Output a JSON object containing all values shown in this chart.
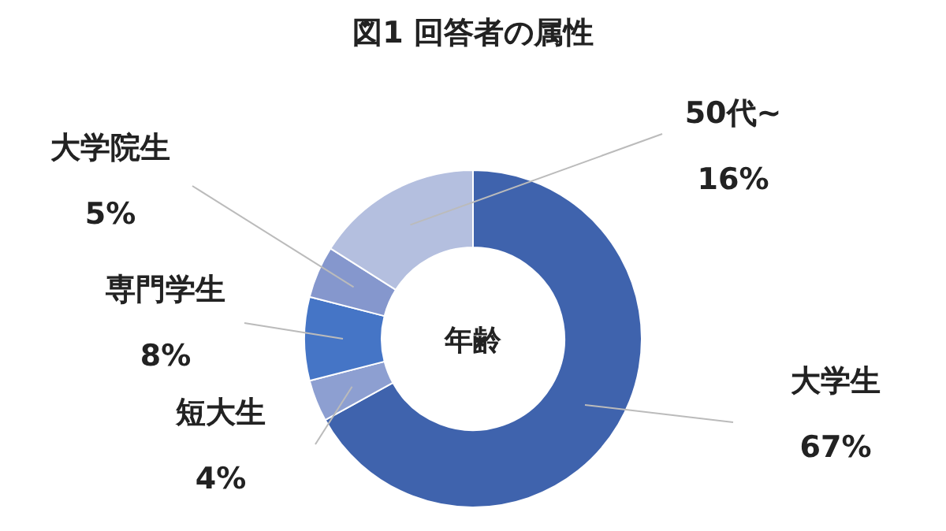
{
  "chart_data": {
    "type": "donut",
    "title": "図1 回答者の属性",
    "categories": [
      "大学生",
      "短大生",
      "専門学生",
      "大学院生",
      "50代~"
    ],
    "values": [
      67,
      4,
      8,
      5,
      16
    ],
    "colors": [
      "#3f63ad",
      "#8d9fd1",
      "#4575c6",
      "#8597cd",
      "#b4bfdf"
    ],
    "value_labels": [
      "67%",
      "4%",
      "8%",
      "5%",
      "16%"
    ],
    "annotations": [
      "年齢"
    ]
  }
}
